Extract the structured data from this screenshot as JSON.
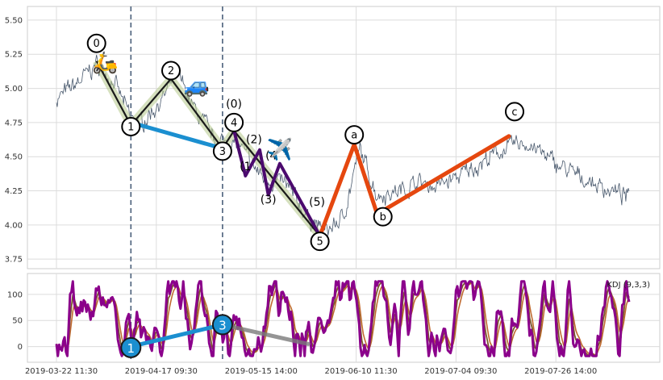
{
  "chart_data": [
    {
      "type": "line",
      "panel": "price",
      "ylim": [
        3.68,
        5.6
      ],
      "yticks": [
        3.75,
        4.0,
        4.25,
        4.5,
        4.75,
        5.0,
        5.25,
        5.5
      ],
      "ytick_labels": [
        "3.75",
        "4.00",
        "4.25",
        "4.50",
        "4.75",
        "5.00",
        "5.25",
        "5.50"
      ],
      "grid": true,
      "price_series": {
        "color": "#4a5a6e",
        "anchors": [
          [
            0.0,
            4.92
          ],
          [
            0.04,
            5.05
          ],
          [
            0.07,
            5.18
          ],
          [
            0.1,
            5.05
          ],
          [
            0.13,
            4.78
          ],
          [
            0.15,
            4.75
          ],
          [
            0.19,
            4.95
          ],
          [
            0.21,
            5.12
          ],
          [
            0.24,
            4.85
          ],
          [
            0.28,
            4.6
          ],
          [
            0.3,
            4.62
          ],
          [
            0.32,
            4.58
          ],
          [
            0.34,
            4.45
          ],
          [
            0.36,
            4.35
          ],
          [
            0.4,
            4.3
          ],
          [
            0.44,
            4.05
          ],
          [
            0.47,
            3.95
          ],
          [
            0.5,
            4.05
          ],
          [
            0.53,
            4.55
          ],
          [
            0.56,
            4.22
          ],
          [
            0.6,
            4.25
          ],
          [
            0.63,
            4.32
          ],
          [
            0.66,
            4.28
          ],
          [
            0.7,
            4.35
          ],
          [
            0.74,
            4.45
          ],
          [
            0.78,
            4.55
          ],
          [
            0.81,
            4.6
          ],
          [
            0.83,
            4.58
          ],
          [
            0.86,
            4.48
          ],
          [
            0.9,
            4.38
          ],
          [
            0.94,
            4.3
          ],
          [
            0.97,
            4.25
          ],
          [
            1.0,
            4.2
          ]
        ]
      },
      "wave_impulse": {
        "color": "#1a1a1a",
        "shadow": "#b5c98a",
        "points": [
          [
            0.07,
            5.2
          ],
          [
            0.13,
            4.73
          ],
          [
            0.2,
            5.07
          ],
          [
            0.29,
            4.56
          ],
          [
            0.31,
            4.69
          ],
          [
            0.46,
            3.92
          ]
        ]
      },
      "wave_sub_impulse": {
        "color": "#4b0a6e",
        "points": [
          [
            0.31,
            4.69
          ],
          [
            0.33,
            4.36
          ],
          [
            0.355,
            4.55
          ],
          [
            0.37,
            4.22
          ],
          [
            0.39,
            4.45
          ],
          [
            0.46,
            3.92
          ]
        ]
      },
      "wave_abc": {
        "color": "#e5470f",
        "points": [
          [
            0.46,
            3.92
          ],
          [
            0.52,
            4.59
          ],
          [
            0.56,
            4.08
          ],
          [
            0.79,
            4.65
          ]
        ]
      },
      "wave_blue": {
        "color": "#1b8fd0",
        "points": [
          [
            0.13,
            4.75
          ],
          [
            0.29,
            4.56
          ]
        ]
      },
      "vlines_x": [
        0.13,
        0.29
      ],
      "circle_labels": [
        {
          "text": "0",
          "x": 0.07,
          "y": 5.33
        },
        {
          "text": "1",
          "x": 0.13,
          "y": 4.72
        },
        {
          "text": "2",
          "x": 0.2,
          "y": 5.13
        },
        {
          "text": "3",
          "x": 0.29,
          "y": 4.54
        },
        {
          "text": "4",
          "x": 0.31,
          "y": 4.75
        },
        {
          "text": "5",
          "x": 0.46,
          "y": 3.88
        },
        {
          "text": "a",
          "x": 0.52,
          "y": 4.66
        },
        {
          "text": "b",
          "x": 0.57,
          "y": 4.06
        },
        {
          "text": "c",
          "x": 0.8,
          "y": 4.83
        }
      ],
      "text_labels": [
        {
          "text": "(0)",
          "x": 0.31,
          "y": 4.86
        },
        {
          "text": "(2)",
          "x": 0.345,
          "y": 4.6
        },
        {
          "text": "(1",
          "x": 0.33,
          "y": 4.4
        },
        {
          "text": "(4",
          "x": 0.375,
          "y": 4.48
        },
        {
          "text": "(3)",
          "x": 0.37,
          "y": 4.16
        },
        {
          "text": "(5)",
          "x": 0.455,
          "y": 4.14
        }
      ],
      "emojis": [
        {
          "text": "🛵",
          "x": 0.085,
          "y": 5.14
        },
        {
          "text": "🚙",
          "x": 0.245,
          "y": 4.97
        },
        {
          "text": "✈️",
          "x": 0.39,
          "y": 4.5
        }
      ]
    },
    {
      "type": "line",
      "panel": "indicator",
      "title": "KDJ (9,3,3)",
      "ylim": [
        -30,
        140
      ],
      "yticks": [
        0,
        50,
        100
      ],
      "ytick_labels": [
        "0",
        "50",
        "100"
      ],
      "grid": true,
      "x_tick_labels": [
        "2019-03-22 11:30",
        "2019-04-17 09:30",
        "2019-05-15 14:00",
        "2019-06-10 11:30",
        "2019-07-04 09:30",
        "2019-07-26 14:00"
      ],
      "x_tick_positions": [
        0.0,
        0.1744,
        0.349,
        0.5233,
        0.6977,
        0.8721
      ],
      "series": [
        {
          "color": "#8b008b",
          "role": "J"
        },
        {
          "color": "#7a5a2a",
          "role": "K"
        },
        {
          "color": "#c06a30",
          "role": "D"
        }
      ],
      "blue_line": {
        "color": "#1b8fd0",
        "points": [
          [
            0.13,
            0
          ],
          [
            0.29,
            42
          ]
        ]
      },
      "gray_line": {
        "color": "#7a7a7a",
        "points": [
          [
            0.29,
            42
          ],
          [
            0.44,
            5
          ]
        ]
      },
      "circle_labels": [
        {
          "text": "1",
          "x": 0.13,
          "y": -2
        },
        {
          "text": "3",
          "x": 0.29,
          "y": 42
        }
      ]
    }
  ]
}
